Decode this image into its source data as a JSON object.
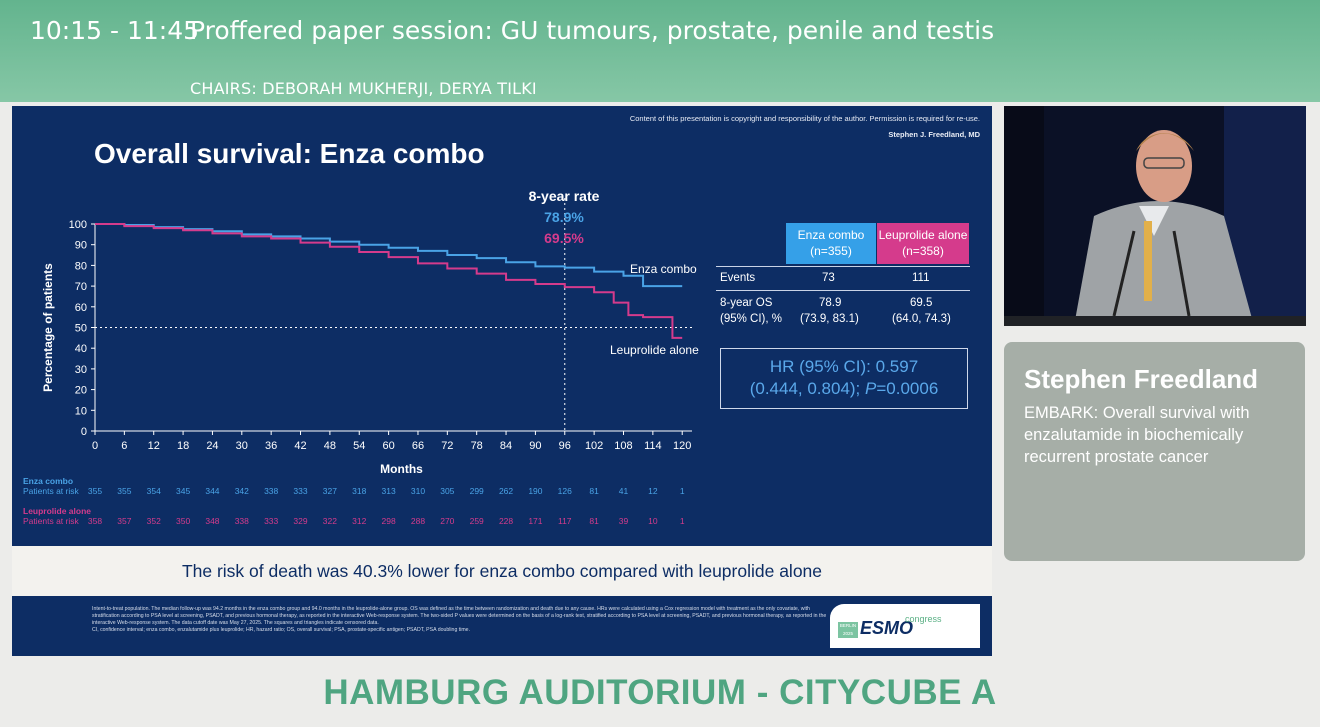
{
  "header": {
    "session_time": "10:15 - 11:45",
    "session_title": "Proffered paper session: GU tumours, prostate, penile and testis",
    "chairs": "CHAIRS: DEBORAH MUKHERJI, DERYA TILKI"
  },
  "slide": {
    "copyright": "Content of this presentation is copyright and responsibility of the author. Permission is required for re-use.",
    "author": "Stephen J. Freedland, MD",
    "title": "Overall survival: Enza combo",
    "rate_label": "8-year rate",
    "rate_enza": "78.9%",
    "rate_leuprolide": "69.5%",
    "curve_label_enza": "Enza combo",
    "curve_label_leuprolide": "Leuprolide alone",
    "table": {
      "col1_name": "Enza combo",
      "col1_n": "(n=355)",
      "col2_name": "Leuprolide alone",
      "col2_n": "(n=358)",
      "events_label": "Events",
      "events_enza": "73",
      "events_leuprolide": "111",
      "os_label_1": "8-year OS",
      "os_label_2": "(95% CI), %",
      "os_enza": "78.9",
      "os_enza_ci": "(73.9, 83.1)",
      "os_leuprolide": "69.5",
      "os_leuprolide_ci": "(64.0, 74.3)"
    },
    "hr_line1": "HR (95% CI): 0.597",
    "hr_line2a": "(0.444, 0.804); ",
    "hr_line2b": "P",
    "hr_line2c": "=0.0006",
    "risk_note": "The risk of death was 40.3% lower for enza combo compared with leuprolide alone",
    "footnote_1": "Intent-to-treat population. The median follow-up was 94.2 months in the enza combo group and 94.0 months in the leuprolide-alone group. OS was defined as the time between randomization and death due to any cause. HRs were calculated using a Cox regression model with treatment as the only covariate, with stratification according to PSA level at screening, PSADT, and previous hormonal therapy, as reported in the interactive Web-response system. The two-sided P values were determined on the basis of a log-rank test, stratified according to PSA level at screening, PSADT, and previous hormonal therapy, as reported in the interactive Web-response system. The data cutoff date was May 27, 2025. The squares and triangles indicate censored data.",
    "footnote_2": "CI, confidence interval; enza combo, enzalutamide plus leuprolide; HR, hazard ratio; OS, overall survival; PSA, prostate-specific antigen; PSADT, PSA doubling time.",
    "esmo_city": "BERLIN 2025",
    "esmo_logo": "ESMO",
    "esmo_congress": "congress"
  },
  "chart_data": {
    "type": "line",
    "xlabel": "Months",
    "ylabel": "Percentage of patients",
    "xlim": [
      0,
      122
    ],
    "ylim": [
      0,
      100
    ],
    "x_ticks": [
      0,
      6,
      12,
      18,
      24,
      30,
      36,
      42,
      48,
      54,
      60,
      66,
      72,
      78,
      84,
      90,
      96,
      102,
      108,
      114,
      120
    ],
    "y_ticks": [
      0,
      10,
      20,
      30,
      40,
      50,
      60,
      70,
      80,
      90,
      100
    ],
    "reference_y": 50,
    "reference_x": 96,
    "series": [
      {
        "name": "Enza combo",
        "color": "#4aa3e6",
        "x": [
          0,
          6,
          12,
          18,
          24,
          30,
          36,
          42,
          48,
          54,
          60,
          66,
          72,
          78,
          84,
          90,
          96,
          102,
          108,
          112,
          114,
          120
        ],
        "y": [
          100,
          99.5,
          98.5,
          97.5,
          96.5,
          95,
          94,
          93,
          91.5,
          90,
          88.5,
          87,
          85,
          83.5,
          81.5,
          79.5,
          78.9,
          77,
          75,
          70,
          70,
          70
        ]
      },
      {
        "name": "Leuprolide alone",
        "color": "#d53b8c",
        "x": [
          0,
          6,
          12,
          18,
          24,
          30,
          36,
          42,
          48,
          54,
          60,
          66,
          72,
          78,
          84,
          90,
          96,
          102,
          106,
          109,
          112,
          116,
          118,
          120
        ],
        "y": [
          100,
          99,
          98,
          97,
          95.5,
          94,
          93,
          91,
          89,
          86.5,
          84,
          81,
          78.5,
          76,
          73,
          71,
          69.5,
          67,
          62,
          56,
          55,
          55,
          45,
          45
        ]
      }
    ],
    "risk_table": {
      "label": "Patients at risk",
      "rows": [
        {
          "name": "Enza combo",
          "color": "#4aa3e6",
          "values": [
            "355",
            "355",
            "354",
            "345",
            "344",
            "342",
            "338",
            "333",
            "327",
            "318",
            "313",
            "310",
            "305",
            "299",
            "262",
            "190",
            "126",
            "81",
            "41",
            "12",
            "1"
          ]
        },
        {
          "name": "Leuprolide alone",
          "color": "#d53b8c",
          "values": [
            "358",
            "357",
            "352",
            "350",
            "348",
            "338",
            "333",
            "329",
            "322",
            "312",
            "298",
            "288",
            "270",
            "259",
            "228",
            "171",
            "117",
            "81",
            "39",
            "10",
            "1"
          ]
        }
      ]
    }
  },
  "speaker": {
    "name": "Stephen Freedland",
    "talk": "EMBARK: Overall survival with enzalutamide in biochemically recurrent prostate cancer"
  },
  "venue": "HAMBURG AUDITORIUM - CITYCUBE A"
}
